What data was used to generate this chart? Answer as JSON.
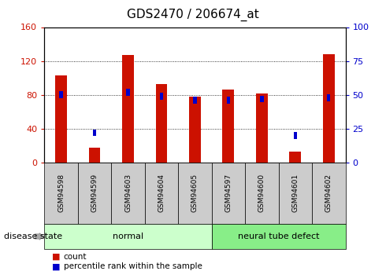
{
  "title": "GDS2470 / 206674_at",
  "samples": [
    "GSM94598",
    "GSM94599",
    "GSM94603",
    "GSM94604",
    "GSM94605",
    "GSM94597",
    "GSM94600",
    "GSM94601",
    "GSM94602"
  ],
  "count": [
    103,
    18,
    127,
    93,
    78,
    86,
    82,
    13,
    128
  ],
  "percentile": [
    50,
    22,
    52,
    49,
    46,
    46,
    47,
    20,
    48
  ],
  "left_ylim": [
    0,
    160
  ],
  "right_ylim": [
    0,
    100
  ],
  "left_yticks": [
    0,
    40,
    80,
    120,
    160
  ],
  "right_yticks": [
    0,
    25,
    50,
    75,
    100
  ],
  "bar_color": "#cc1100",
  "dot_color": "#0000cc",
  "title_fontsize": 11,
  "groups": [
    {
      "label": "normal",
      "start": 0,
      "end": 5,
      "color": "#ccffcc"
    },
    {
      "label": "neural tube defect",
      "start": 5,
      "end": 9,
      "color": "#88ee88"
    }
  ],
  "disease_state_label": "disease state",
  "legend_count_label": "count",
  "legend_pct_label": "percentile rank within the sample",
  "grid_color": "black",
  "xtick_bg_color": "#cccccc"
}
